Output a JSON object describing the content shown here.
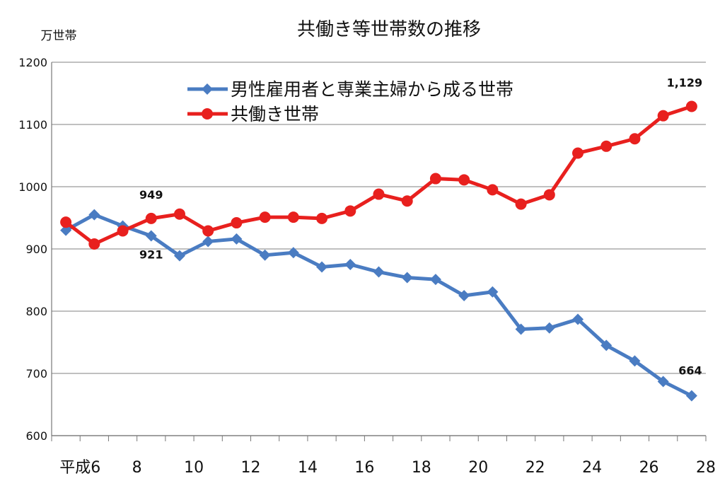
{
  "chart_data": {
    "type": "line",
    "title": "共働き等世帯数の推移",
    "unit_label": "万世帯",
    "x": [
      6,
      7,
      8,
      9,
      10,
      11,
      12,
      13,
      14,
      15,
      16,
      17,
      18,
      19,
      20,
      21,
      22,
      23,
      24,
      25,
      26,
      27,
      28
    ],
    "x_tick_labels": [
      "平成6",
      "8",
      "10",
      "12",
      "14",
      "16",
      "18",
      "20",
      "22",
      "24",
      "26",
      "28"
    ],
    "x_tick_values": [
      6,
      8,
      10,
      12,
      14,
      16,
      18,
      20,
      22,
      24,
      26,
      28
    ],
    "ylim": [
      600,
      1200
    ],
    "y_ticks": [
      600,
      700,
      800,
      900,
      1000,
      1100,
      1200
    ],
    "grid": true,
    "legend_position": "top-center",
    "series": [
      {
        "name": "男性雇用者と専業主婦から成る世帯",
        "color": "#4a7cc2",
        "marker": "diamond",
        "values": [
          930,
          955,
          937,
          921,
          889,
          912,
          916,
          890,
          894,
          871,
          875,
          863,
          854,
          851,
          825,
          831,
          771,
          773,
          787,
          745,
          720,
          687,
          664
        ]
      },
      {
        "name": "共働き世帯",
        "color": "#e8201e",
        "marker": "circle",
        "values": [
          943,
          908,
          929,
          949,
          956,
          929,
          942,
          951,
          951,
          949,
          961,
          988,
          977,
          1013,
          1011,
          995,
          972,
          987,
          1054,
          1065,
          1077,
          1114,
          1129
        ]
      }
    ],
    "annotations": [
      {
        "series": 1,
        "index": 3,
        "text": "949"
      },
      {
        "series": 0,
        "index": 3,
        "text": "921"
      },
      {
        "series": 1,
        "index": 22,
        "text": "1,129"
      },
      {
        "series": 0,
        "index": 22,
        "text": "664"
      }
    ]
  }
}
